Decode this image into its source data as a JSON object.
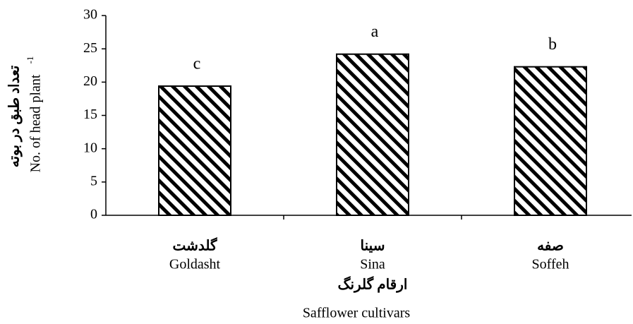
{
  "chart_data": {
    "type": "bar",
    "categories": [
      "Goldasht",
      "Sina",
      "Soffeh"
    ],
    "persian_categories": [
      "گلدشت",
      "سینا",
      "صفه"
    ],
    "values": [
      19.4,
      24.2,
      22.3
    ],
    "annotations": [
      "c",
      "a",
      "b"
    ],
    "xlabel": "Safflower cultivars",
    "xlabel_persian": "ارقام گلرنگ",
    "ylabel": "No. of head plant",
    "ylabel_superscript": "-1",
    "ylabel_persian": "تعداد طبق در بوته",
    "color": "#000000",
    "ylim": [
      0,
      30
    ],
    "yticks": [
      0,
      5,
      10,
      15,
      20,
      25,
      30
    ],
    "grid": false
  }
}
